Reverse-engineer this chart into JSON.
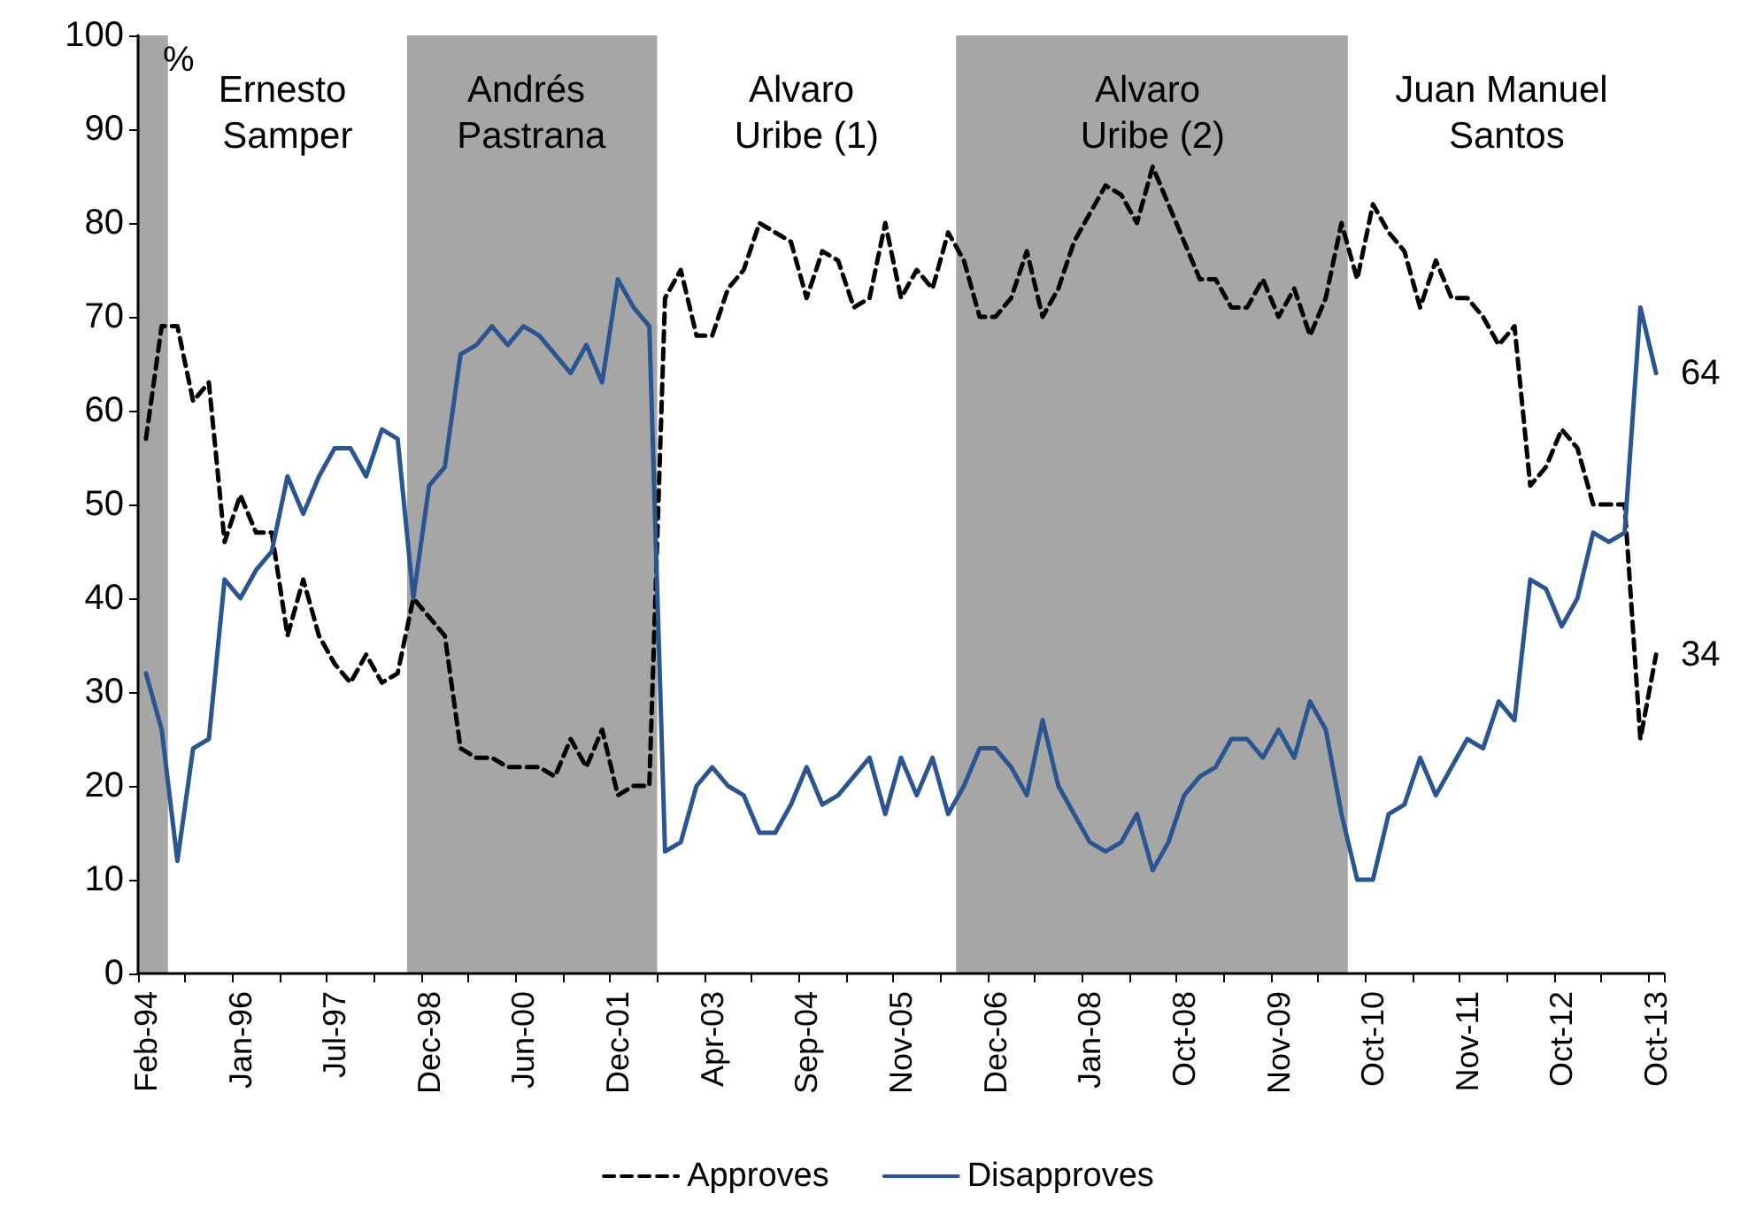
{
  "chart_data": {
    "type": "line",
    "ylabel": "%",
    "categories": [
      "Feb-94",
      null,
      null,
      null,
      null,
      null,
      "Jan-96",
      null,
      null,
      null,
      null,
      null,
      "Jul-97",
      null,
      null,
      null,
      null,
      null,
      "Dec-98",
      null,
      null,
      null,
      null,
      null,
      "Jun-00",
      null,
      null,
      null,
      null,
      null,
      "Dec-01",
      null,
      null,
      null,
      null,
      null,
      "Apr-03",
      null,
      null,
      null,
      null,
      null,
      "Sep-04",
      null,
      null,
      null,
      null,
      null,
      "Nov-05",
      null,
      null,
      null,
      null,
      null,
      "Dec-06",
      null,
      null,
      null,
      null,
      null,
      "Jan-08",
      null,
      null,
      null,
      null,
      null,
      "Oct-08",
      null,
      null,
      null,
      null,
      null,
      "Nov-09",
      null,
      null,
      null,
      null,
      null,
      "Oct-10",
      null,
      null,
      null,
      null,
      null,
      "Nov-11",
      null,
      null,
      null,
      null,
      null,
      "Oct-12",
      null,
      null,
      null,
      null,
      null,
      "Oct-13"
    ],
    "series": [
      {
        "name": "Approves",
        "color": "#000000",
        "line_style": "dashed",
        "values": [
          57,
          69,
          69,
          61,
          63,
          46,
          51,
          47,
          47,
          36,
          42,
          36,
          33,
          31,
          34,
          31,
          32,
          40,
          38,
          36,
          24,
          23,
          23,
          22,
          22,
          22,
          21,
          25,
          22,
          26,
          19,
          20,
          20,
          72,
          75,
          68,
          68,
          73,
          75,
          80,
          79,
          78,
          72,
          77,
          76,
          71,
          72,
          80,
          72,
          75,
          73,
          79,
          76,
          70,
          70,
          72,
          77,
          70,
          73,
          78,
          81,
          84,
          83,
          80,
          86,
          82,
          78,
          74,
          74,
          71,
          71,
          74,
          70,
          73,
          68,
          72,
          80,
          74,
          82,
          79,
          77,
          71,
          76,
          72,
          72,
          70,
          67,
          69,
          52,
          54,
          58,
          56,
          50,
          50,
          50,
          25,
          34
        ]
      },
      {
        "name": "Disapproves",
        "color": "#2b5591",
        "line_style": "solid",
        "values": [
          32,
          26,
          12,
          24,
          25,
          42,
          40,
          43,
          45,
          53,
          49,
          53,
          56,
          56,
          53,
          58,
          57,
          40,
          52,
          54,
          66,
          67,
          69,
          67,
          69,
          68,
          66,
          64,
          67,
          63,
          74,
          71,
          69,
          13,
          14,
          20,
          22,
          20,
          19,
          15,
          15,
          18,
          22,
          18,
          19,
          21,
          23,
          17,
          23,
          19,
          23,
          17,
          20,
          24,
          24,
          22,
          19,
          27,
          20,
          17,
          14,
          13,
          14,
          17,
          11,
          14,
          19,
          21,
          22,
          25,
          25,
          23,
          26,
          23,
          29,
          26,
          17,
          10,
          10,
          17,
          18,
          23,
          19,
          22,
          25,
          24,
          29,
          27,
          42,
          41,
          37,
          40,
          47,
          46,
          47,
          71,
          64
        ]
      }
    ],
    "ylim": [
      0,
      100
    ],
    "yticks": [
      0,
      10,
      20,
      30,
      40,
      50,
      60,
      70,
      80,
      90,
      100
    ],
    "annotations": [
      "Ernesto Samper",
      "Andrés Pastrana",
      "Alvaro Uribe (1)",
      "Alvaro Uribe (2)",
      "Juan Manuel Santos",
      {
        "text": "64",
        "x": "Oct-13",
        "y": 64
      },
      {
        "text": "34",
        "x": "Oct-13",
        "y": 34
      }
    ],
    "legend": "bottom",
    "grid": false,
    "marker": "none"
  }
}
